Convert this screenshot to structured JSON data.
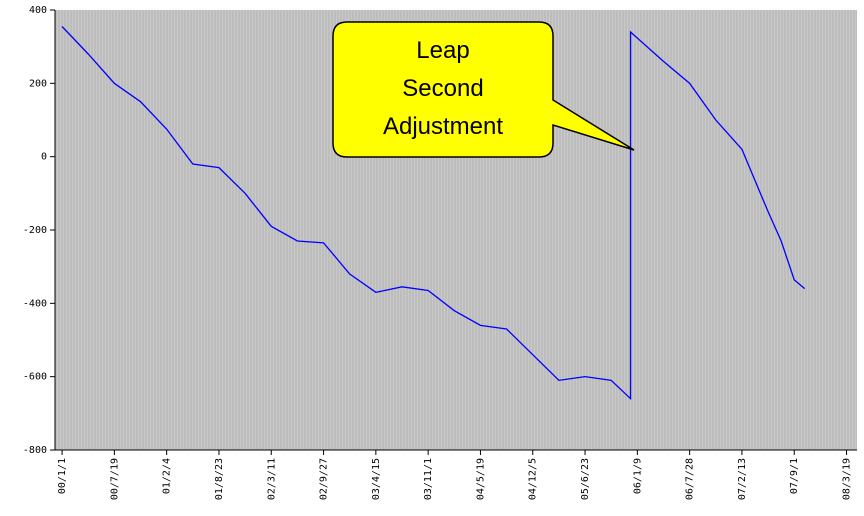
{
  "chart_data": {
    "type": "line",
    "x": [
      0,
      100,
      200,
      300,
      400,
      500,
      600,
      700,
      800,
      900,
      1000,
      1100,
      1200,
      1300,
      1400,
      1500,
      1600,
      1700,
      1800,
      1900,
      2000,
      2100,
      2174,
      2174,
      2300,
      2400,
      2500,
      2600,
      2700,
      2750,
      2800,
      2840
    ],
    "series": [
      {
        "color": "#0000ff",
        "values": [
          355,
          280,
          200,
          150,
          75,
          -20,
          -30,
          -100,
          -190,
          -230,
          -235,
          -320,
          -370,
          -355,
          -365,
          -420,
          -460,
          -470,
          -540,
          -610,
          -600,
          -610,
          -660,
          340,
          260,
          200,
          100,
          20,
          -150,
          -230,
          -336,
          -360
        ]
      }
    ],
    "xlim": [
      -27,
      3040
    ],
    "ylim": [
      -800,
      400
    ],
    "yticks": [
      -800,
      -600,
      -400,
      -200,
      0,
      200,
      400
    ],
    "xticks": [
      {
        "value": 0,
        "label": "00/1/1"
      },
      {
        "value": 200,
        "label": "00/7/19"
      },
      {
        "value": 400,
        "label": "01/2/4"
      },
      {
        "value": 600,
        "label": "01/8/23"
      },
      {
        "value": 800,
        "label": "02/3/11"
      },
      {
        "value": 1000,
        "label": "02/9/27"
      },
      {
        "value": 1200,
        "label": "03/4/15"
      },
      {
        "value": 1400,
        "label": "03/11/1"
      },
      {
        "value": 1600,
        "label": "04/5/19"
      },
      {
        "value": 1800,
        "label": "04/12/5"
      },
      {
        "value": 2000,
        "label": "05/6/23"
      },
      {
        "value": 2200,
        "label": "06/1/9"
      },
      {
        "value": 2400,
        "label": "06/7/28"
      },
      {
        "value": 2600,
        "label": "07/2/13"
      },
      {
        "value": 2800,
        "label": "07/9/1"
      },
      {
        "value": 3000,
        "label": "08/3/19"
      }
    ],
    "annotation": [
      "Leap",
      "Second",
      "Adjustment"
    ]
  }
}
